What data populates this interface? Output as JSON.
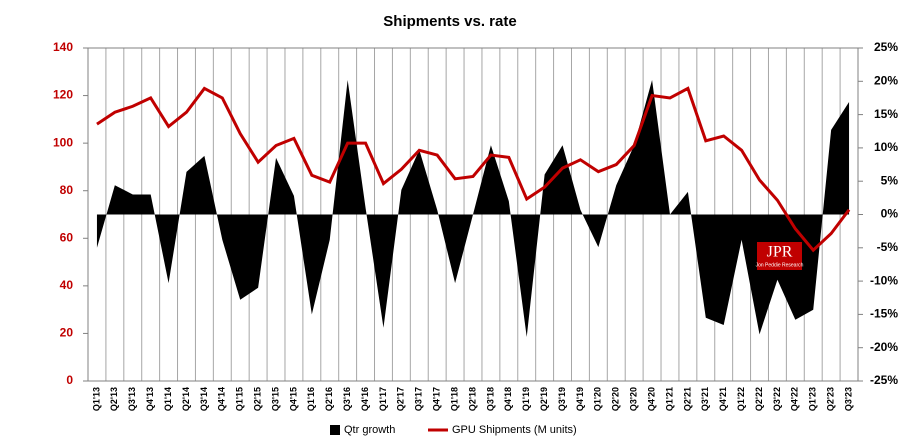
{
  "chart_data": {
    "type": "combo",
    "title": "Shipments vs. rate",
    "categories": [
      "Q1'13",
      "Q2'13",
      "Q3'13",
      "Q4'13",
      "Q1'14",
      "Q2'14",
      "Q3'14",
      "Q4'14",
      "Q1'15",
      "Q2'15",
      "Q3'15",
      "Q4'15",
      "Q1'16",
      "Q2'16",
      "Q3'16",
      "Q4'16",
      "Q1'17",
      "Q2'17",
      "Q3'17",
      "Q4'17",
      "Q1'18",
      "Q2'18",
      "Q3'18",
      "Q4'18",
      "Q1'19",
      "Q2'19",
      "Q3'19",
      "Q4'19",
      "Q1'20",
      "Q2'20",
      "Q3'20",
      "Q4'20",
      "Q1'21",
      "Q2'21",
      "Q3'21",
      "Q4'21",
      "Q1'22",
      "Q2'22",
      "Q3'22",
      "Q4'22",
      "Q1'23",
      "Q2'23",
      "Q3'23"
    ],
    "series": [
      {
        "name": "Qtr growth",
        "color": "#000000",
        "kind": "area",
        "axis": "y2",
        "values": [
          -5,
          4.4,
          3,
          3,
          -10.3,
          6.4,
          8.8,
          -3.8,
          -12.8,
          -11,
          8.5,
          2.8,
          -15,
          -3.8,
          20.2,
          1,
          -17,
          3.7,
          9.7,
          0.7,
          -10.3,
          0,
          10.4,
          2,
          -18.4,
          6,
          10.4,
          0.7,
          -4.9,
          4.4,
          10.4,
          20.2,
          0,
          3.4,
          -15.5,
          -16.6,
          -3.8,
          -18,
          -9.8,
          -15.8,
          -14.3,
          12.7,
          16.9
        ]
      },
      {
        "name": "GPU Shipments (M units)",
        "color": "#c00000",
        "kind": "line",
        "values": [
          108,
          113,
          115.5,
          119,
          107,
          113,
          123,
          119,
          104,
          92,
          99,
          102,
          86.5,
          83.6,
          100,
          100,
          83,
          89,
          97,
          95,
          85,
          86,
          95,
          94,
          76.5,
          81.5,
          89.5,
          93,
          88,
          91,
          99,
          120,
          119,
          123,
          101,
          103,
          97,
          84.5,
          76,
          64,
          55,
          62,
          72
        ]
      }
    ],
    "ylim": [
      0,
      140
    ],
    "yticks": [
      0,
      20,
      40,
      60,
      80,
      100,
      120,
      140
    ],
    "y2lim": [
      -25,
      25
    ],
    "y2ticks": [
      {
        "value": -25,
        "label": "-25%"
      },
      {
        "value": -20,
        "label": "-20%"
      },
      {
        "value": -15,
        "label": "-15%"
      },
      {
        "value": -10,
        "label": "-10%"
      },
      {
        "value": -5,
        "label": "-5%"
      },
      {
        "value": 0,
        "label": "0%"
      },
      {
        "value": 5,
        "label": "5%"
      },
      {
        "value": 10,
        "label": "10%"
      },
      {
        "value": 15,
        "label": "15%"
      },
      {
        "value": 20,
        "label": "20%"
      },
      {
        "value": 25,
        "label": "25%"
      }
    ],
    "ytick_color": "#c00000",
    "grid": "x",
    "legend": "bottom",
    "logo": {
      "text": "JPR",
      "subtitle": "Jon Peddie Research",
      "color": "#c00000"
    }
  }
}
